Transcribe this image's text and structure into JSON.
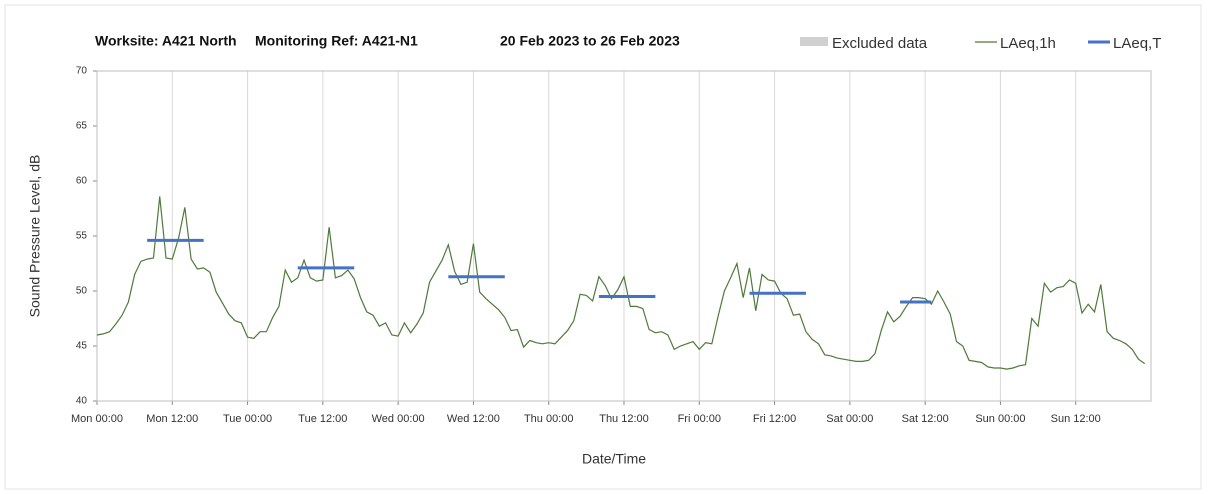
{
  "chart_data": {
    "type": "line",
    "title_parts": [
      "Worksite: A421 North",
      "Monitoring Ref: A421-N1",
      "20 Feb 2023 to 26 Feb 2023"
    ],
    "y_label": "Sound Pressure Level, dB",
    "x_label": "Date/Time",
    "excluded": {
      "name": "Excluded data",
      "color": "#d0d0d0"
    },
    "xlim": [
      0,
      168
    ],
    "xticks": [
      {
        "value": 0,
        "label": "Mon 00:00"
      },
      {
        "value": 12,
        "label": "Mon 12:00"
      },
      {
        "value": 24,
        "label": "Tue 00:00"
      },
      {
        "value": 36,
        "label": "Tue 12:00"
      },
      {
        "value": 48,
        "label": "Wed 00:00"
      },
      {
        "value": 60,
        "label": "Wed 12:00"
      },
      {
        "value": 72,
        "label": "Thu 00:00"
      },
      {
        "value": 84,
        "label": "Thu 12:00"
      },
      {
        "value": 96,
        "label": "Fri 00:00"
      },
      {
        "value": 108,
        "label": "Fri 12:00"
      },
      {
        "value": 120,
        "label": "Sat 00:00"
      },
      {
        "value": 132,
        "label": "Sat 12:00"
      },
      {
        "value": 144,
        "label": "Sun 00:00"
      },
      {
        "value": 156,
        "label": "Sun 12:00"
      }
    ],
    "ylim": [
      40,
      70
    ],
    "yticks": [
      40,
      45,
      50,
      55,
      60,
      65,
      70
    ],
    "grid": "x",
    "series": [
      {
        "name": "LAeq,1h",
        "color": "#4e7a3a",
        "values": [
          46,
          46.1,
          46.3,
          47,
          47.8,
          49,
          51.5,
          52.7,
          52.9,
          53,
          58.6,
          53,
          52.9,
          54.8,
          57.6,
          52.9,
          52,
          52.1,
          51.7,
          49.9,
          48.9,
          47.9,
          47.3,
          47.1,
          45.8,
          45.7,
          46.3,
          46.3,
          47.6,
          48.6,
          51.9,
          50.8,
          51.2,
          52.8,
          51.2,
          50.9,
          51,
          55.8,
          51.2,
          51.4,
          51.9,
          51.1,
          49.4,
          48.1,
          47.8,
          46.8,
          47.1,
          46,
          45.9,
          47.1,
          46.2,
          47,
          48,
          50.8,
          51.8,
          52.8,
          54.2,
          51.8,
          50.6,
          50.8,
          54.3,
          49.9,
          49.3,
          48.8,
          48.3,
          47.6,
          46.4,
          46.5,
          44.9,
          45.5,
          45.3,
          45.2,
          45.3,
          45.2,
          45.8,
          46.4,
          47.3,
          49.7,
          49.6,
          49.1,
          51.3,
          50.5,
          49.3,
          50.1,
          51.3,
          48.6,
          48.6,
          48.4,
          46.5,
          46.2,
          46.3,
          46,
          44.7,
          45,
          45.2,
          45.4,
          44.7,
          45.3,
          45.2,
          47.7,
          50,
          51.2,
          52.5,
          49.4,
          52.1,
          48.2,
          51.5,
          51,
          50.9,
          49.8,
          49.3,
          47.8,
          47.9,
          46.3,
          45.6,
          45.2,
          44.2,
          44.1,
          43.9,
          43.8,
          43.7,
          43.6,
          43.6,
          43.7,
          44.3,
          46.4,
          48.1,
          47.2,
          47.7,
          48.6,
          49.4,
          49.4,
          49.3,
          48.8,
          50,
          49,
          47.9,
          45.4,
          45,
          43.7,
          43.6,
          43.5,
          43.1,
          43,
          43,
          42.9,
          43,
          43.2,
          43.3,
          47.5,
          46.8,
          50.7,
          49.9,
          50.3,
          50.4,
          51,
          50.7,
          48,
          48.8,
          48.1,
          50.6,
          46.3,
          45.7,
          45.5,
          45.2,
          44.7,
          43.8,
          43.4
        ]
      },
      {
        "name": "LAeq,T",
        "color": "#4472c4",
        "segments": [
          {
            "x": [
              8,
              17
            ],
            "value": 54.6
          },
          {
            "x": [
              32,
              41
            ],
            "value": 52.1
          },
          {
            "x": [
              56,
              65
            ],
            "value": 51.3
          },
          {
            "x": [
              80,
              89
            ],
            "value": 49.5
          },
          {
            "x": [
              104,
              113
            ],
            "value": 49.8
          },
          {
            "x": [
              128,
              133
            ],
            "value": 49.0
          }
        ]
      }
    ]
  }
}
